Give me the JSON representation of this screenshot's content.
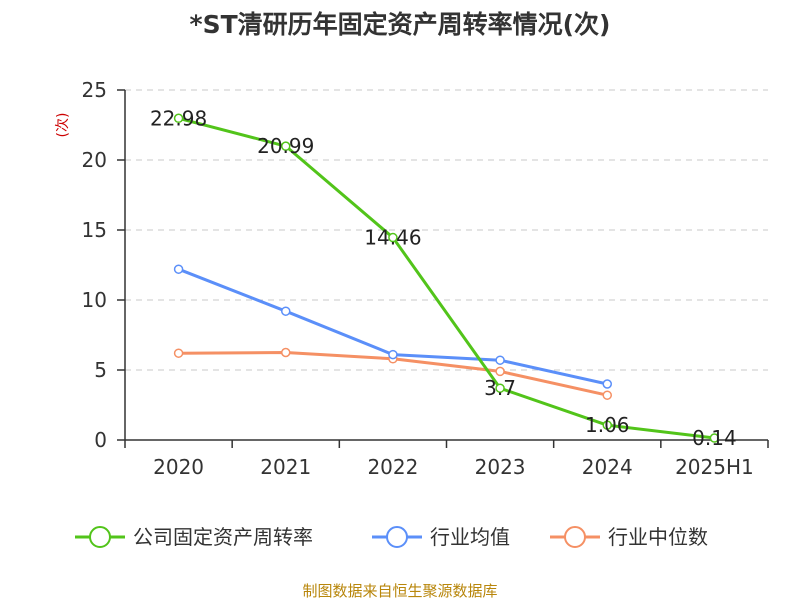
{
  "chart_data": {
    "type": "line",
    "title": "*ST清研历年固定资产周转率情况(次)",
    "ylabel": "(次)",
    "xlabel": "",
    "categories": [
      "2020",
      "2021",
      "2022",
      "2023",
      "2024",
      "2025H1"
    ],
    "ylim": [
      0,
      25
    ],
    "yticks": [
      0,
      5,
      10,
      15,
      20,
      25
    ],
    "grid": true,
    "legend_position": "bottom",
    "series": [
      {
        "name": "公司固定资产周转率",
        "color": "#52c41a",
        "values": [
          22.98,
          20.99,
          14.46,
          3.7,
          1.06,
          0.14
        ],
        "labels": [
          "22.98",
          "20.99",
          "14.46",
          "3.7",
          "1.06",
          "0.14"
        ]
      },
      {
        "name": "行业均值",
        "color": "#5b8ff9",
        "values": [
          12.2,
          9.2,
          6.1,
          5.7,
          4.0,
          null
        ]
      },
      {
        "name": "行业中位数",
        "color": "#f59064",
        "values": [
          6.2,
          6.25,
          5.8,
          4.9,
          3.2,
          null
        ]
      }
    ]
  },
  "footer": {
    "source": "制图数据来自恒生聚源数据库"
  }
}
